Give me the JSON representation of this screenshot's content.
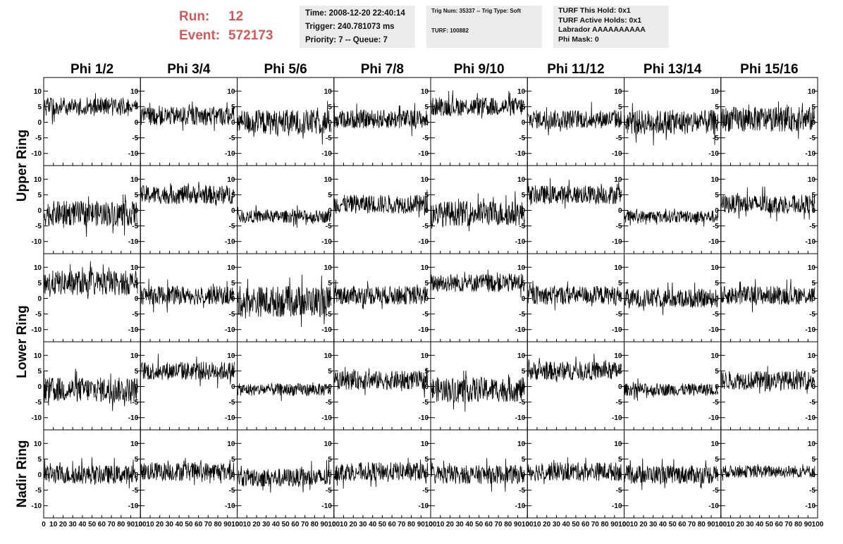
{
  "header": {
    "run_label": "Run:",
    "run_value": "12",
    "event_label": "Event:",
    "event_value": "572173",
    "time_line": "Time: 2008-12-20 22:40:14",
    "trigger_line": "Trigger: 240.781073 ms",
    "priority_line": "Priority: 7 -- Queue: 7",
    "trig_line": "Trig Num: 35337 -- Trig Type: Soft",
    "turf_line": "TURF: 100882",
    "turf_hold": "TURF This Hold: 0x1",
    "turf_active": "TURF Active Holds: 0x1",
    "labrador": "Labrador AAAAAAAAAA",
    "phi_mask": "Phi Mask: 0"
  },
  "colors": {
    "run_text": "#d05a5a",
    "info_box_bg": "#ececec",
    "trace": "#000000"
  },
  "chart_data": {
    "type": "line",
    "columns": [
      "Phi 1/2",
      "Phi 3/4",
      "Phi 5/6",
      "Phi 7/8",
      "Phi 9/10",
      "Phi 11/12",
      "Phi 13/14",
      "Phi 15/16"
    ],
    "rows": [
      "Upper Ring",
      "Lower Ring",
      "Nadir Ring"
    ],
    "panels_per_ring": [
      2,
      2,
      1
    ],
    "xlim": [
      0,
      100
    ],
    "ylim": [
      -13,
      13
    ],
    "x_ticks": [
      0,
      10,
      20,
      30,
      40,
      50,
      60,
      70,
      80,
      90,
      100
    ],
    "x_tick_labels": [
      "0",
      "10",
      "20",
      "30",
      "40",
      "50",
      "60",
      "70",
      "80",
      "90",
      "100"
    ],
    "y_ticks": [
      -10,
      -5,
      0,
      5,
      10
    ],
    "y_tick_labels": [
      "-10",
      "-5",
      "0",
      "5",
      "10"
    ],
    "samples_per_trace": 260,
    "trace_x_range": [
      0,
      97
    ],
    "panel_levels": [
      [
        {
          "base": 5,
          "amp": 3
        },
        {
          "base": 2,
          "amp": 3
        },
        {
          "base": 0,
          "amp": 4
        },
        {
          "base": 1,
          "amp": 3
        },
        {
          "base": 5,
          "amp": 3
        },
        {
          "base": 1,
          "amp": 3
        },
        {
          "base": 0,
          "amp": 4
        },
        {
          "base": 1,
          "amp": 4
        }
      ],
      [
        {
          "base": -1,
          "amp": 4
        },
        {
          "base": 5,
          "amp": 3
        },
        {
          "base": -2,
          "amp": 2
        },
        {
          "base": 2,
          "amp": 3
        },
        {
          "base": -1,
          "amp": 4
        },
        {
          "base": 5,
          "amp": 3
        },
        {
          "base": -2,
          "amp": 2
        },
        {
          "base": 2,
          "amp": 3
        }
      ],
      [
        {
          "base": 5,
          "amp": 4
        },
        {
          "base": 1,
          "amp": 3
        },
        {
          "base": -1,
          "amp": 5
        },
        {
          "base": 1,
          "amp": 3
        },
        {
          "base": 5,
          "amp": 3
        },
        {
          "base": 1,
          "amp": 3
        },
        {
          "base": 0,
          "amp": 3
        },
        {
          "base": 1,
          "amp": 3
        }
      ],
      [
        {
          "base": -1,
          "amp": 4
        },
        {
          "base": 5,
          "amp": 3
        },
        {
          "base": -1,
          "amp": 2
        },
        {
          "base": 2,
          "amp": 3
        },
        {
          "base": -1,
          "amp": 4
        },
        {
          "base": 5,
          "amp": 3
        },
        {
          "base": -1,
          "amp": 2
        },
        {
          "base": 2,
          "amp": 3
        }
      ],
      [
        {
          "base": 0,
          "amp": 3
        },
        {
          "base": 1,
          "amp": 3
        },
        {
          "base": -1,
          "amp": 3
        },
        {
          "base": 1,
          "amp": 3
        },
        {
          "base": 0,
          "amp": 3
        },
        {
          "base": 1,
          "amp": 3
        },
        {
          "base": 0,
          "amp": 3
        },
        {
          "base": 1,
          "amp": 2
        }
      ]
    ]
  }
}
